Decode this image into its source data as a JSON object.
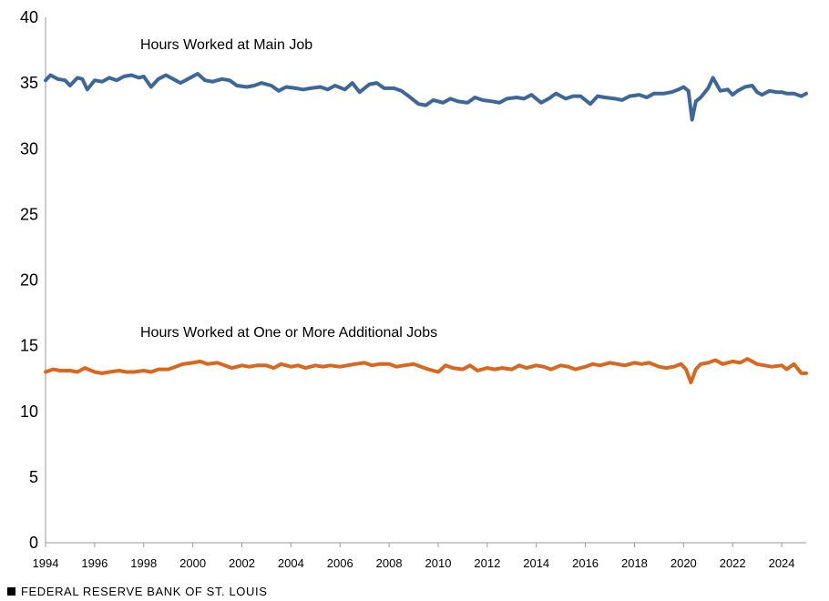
{
  "footer": {
    "source": "FEDERAL RESERVE BANK OF ST. LOUIS"
  },
  "colors": {
    "main_job": "#3e6799",
    "additional_jobs": "#d9671d",
    "axis": "#999999"
  },
  "chart_data": {
    "type": "line",
    "title": "",
    "xlabel": "",
    "ylabel": "",
    "xlim": [
      1994.0,
      2025.0
    ],
    "ylim": [
      0,
      40
    ],
    "yticks": [
      0,
      5,
      10,
      15,
      20,
      25,
      30,
      35,
      40
    ],
    "xticks": [
      1994,
      1996,
      1998,
      2000,
      2002,
      2004,
      2006,
      2008,
      2010,
      2012,
      2014,
      2016,
      2018,
      2020,
      2022,
      2024
    ],
    "grid": false,
    "legend": "none",
    "series": [
      {
        "name": "Hours Worked at Main Job",
        "x": [
          1994.0,
          1994.2,
          1994.5,
          1994.8,
          1995.0,
          1995.3,
          1995.5,
          1995.7,
          1996.0,
          1996.3,
          1996.6,
          1996.9,
          1997.2,
          1997.5,
          1997.8,
          1998.0,
          1998.3,
          1998.6,
          1998.9,
          1999.2,
          1999.5,
          1999.8,
          2000.2,
          2000.5,
          2000.8,
          2001.2,
          2001.5,
          2001.8,
          2002.2,
          2002.5,
          2002.8,
          2003.2,
          2003.5,
          2003.8,
          2004.2,
          2004.5,
          2004.8,
          2005.2,
          2005.5,
          2005.8,
          2006.2,
          2006.5,
          2006.8,
          2007.2,
          2007.5,
          2007.8,
          2008.2,
          2008.5,
          2008.8,
          2009.2,
          2009.5,
          2009.8,
          2010.2,
          2010.5,
          2010.8,
          2011.2,
          2011.5,
          2011.8,
          2012.2,
          2012.5,
          2012.8,
          2013.2,
          2013.5,
          2013.8,
          2014.2,
          2014.5,
          2014.8,
          2015.2,
          2015.5,
          2015.8,
          2016.2,
          2016.5,
          2016.8,
          2017.2,
          2017.5,
          2017.8,
          2018.2,
          2018.5,
          2018.8,
          2019.2,
          2019.5,
          2019.8,
          2020.0,
          2020.2,
          2020.35,
          2020.5,
          2020.7,
          2021.0,
          2021.2,
          2021.5,
          2021.8,
          2022.0,
          2022.2,
          2022.5,
          2022.8,
          2023.0,
          2023.2,
          2023.5,
          2023.8,
          2024.0,
          2024.2,
          2024.5,
          2024.8,
          2025.0
        ],
        "values": [
          35.2,
          35.6,
          35.3,
          35.2,
          34.8,
          35.4,
          35.3,
          34.5,
          35.2,
          35.1,
          35.4,
          35.2,
          35.5,
          35.6,
          35.4,
          35.5,
          34.7,
          35.3,
          35.6,
          35.3,
          35.0,
          35.3,
          35.7,
          35.2,
          35.1,
          35.3,
          35.2,
          34.8,
          34.7,
          34.8,
          35.0,
          34.8,
          34.4,
          34.7,
          34.6,
          34.5,
          34.6,
          34.7,
          34.5,
          34.8,
          34.5,
          35.0,
          34.3,
          34.9,
          35.0,
          34.6,
          34.6,
          34.4,
          34.0,
          33.4,
          33.3,
          33.7,
          33.5,
          33.8,
          33.6,
          33.5,
          33.9,
          33.7,
          33.6,
          33.5,
          33.8,
          33.9,
          33.8,
          34.1,
          33.5,
          33.8,
          34.2,
          33.8,
          34.0,
          34.0,
          33.4,
          34.0,
          33.9,
          33.8,
          33.7,
          34.0,
          34.1,
          33.9,
          34.2,
          34.2,
          34.3,
          34.5,
          34.7,
          34.4,
          32.2,
          33.6,
          33.9,
          34.6,
          35.4,
          34.4,
          34.5,
          34.1,
          34.4,
          34.7,
          34.8,
          34.3,
          34.1,
          34.4,
          34.3,
          34.3,
          34.2,
          34.2,
          34.0,
          34.2
        ]
      },
      {
        "name": "Hours Worked at One or More Additional Jobs",
        "x": [
          1994.0,
          1994.3,
          1994.6,
          1995.0,
          1995.3,
          1995.6,
          1996.0,
          1996.3,
          1996.6,
          1997.0,
          1997.3,
          1997.6,
          1998.0,
          1998.3,
          1998.6,
          1999.0,
          1999.3,
          1999.6,
          2000.0,
          2000.3,
          2000.6,
          2001.0,
          2001.3,
          2001.6,
          2002.0,
          2002.3,
          2002.6,
          2003.0,
          2003.3,
          2003.6,
          2004.0,
          2004.3,
          2004.6,
          2005.0,
          2005.3,
          2005.6,
          2006.0,
          2006.3,
          2006.6,
          2007.0,
          2007.3,
          2007.6,
          2008.0,
          2008.3,
          2008.6,
          2009.0,
          2009.3,
          2009.6,
          2010.0,
          2010.3,
          2010.6,
          2011.0,
          2011.3,
          2011.6,
          2012.0,
          2012.3,
          2012.6,
          2013.0,
          2013.3,
          2013.6,
          2014.0,
          2014.3,
          2014.6,
          2015.0,
          2015.3,
          2015.6,
          2016.0,
          2016.3,
          2016.6,
          2017.0,
          2017.3,
          2017.6,
          2018.0,
          2018.3,
          2018.6,
          2019.0,
          2019.3,
          2019.6,
          2019.9,
          2020.1,
          2020.3,
          2020.5,
          2020.7,
          2021.0,
          2021.3,
          2021.6,
          2022.0,
          2022.3,
          2022.6,
          2023.0,
          2023.3,
          2023.6,
          2024.0,
          2024.2,
          2024.5,
          2024.8,
          2025.0
        ],
        "values": [
          13.0,
          13.2,
          13.1,
          13.1,
          13.0,
          13.3,
          13.0,
          12.9,
          13.0,
          13.1,
          13.0,
          13.0,
          13.1,
          13.0,
          13.2,
          13.2,
          13.4,
          13.6,
          13.7,
          13.8,
          13.6,
          13.7,
          13.5,
          13.3,
          13.5,
          13.4,
          13.5,
          13.5,
          13.3,
          13.6,
          13.4,
          13.5,
          13.3,
          13.5,
          13.4,
          13.5,
          13.4,
          13.5,
          13.6,
          13.7,
          13.5,
          13.6,
          13.6,
          13.4,
          13.5,
          13.6,
          13.4,
          13.2,
          13.0,
          13.5,
          13.3,
          13.2,
          13.5,
          13.1,
          13.3,
          13.2,
          13.3,
          13.2,
          13.5,
          13.3,
          13.5,
          13.4,
          13.2,
          13.5,
          13.4,
          13.2,
          13.4,
          13.6,
          13.5,
          13.7,
          13.6,
          13.5,
          13.7,
          13.6,
          13.7,
          13.4,
          13.3,
          13.4,
          13.6,
          13.2,
          12.2,
          13.2,
          13.6,
          13.7,
          13.9,
          13.6,
          13.8,
          13.7,
          14.0,
          13.6,
          13.5,
          13.4,
          13.5,
          13.2,
          13.6,
          12.9,
          12.9
        ]
      }
    ]
  }
}
